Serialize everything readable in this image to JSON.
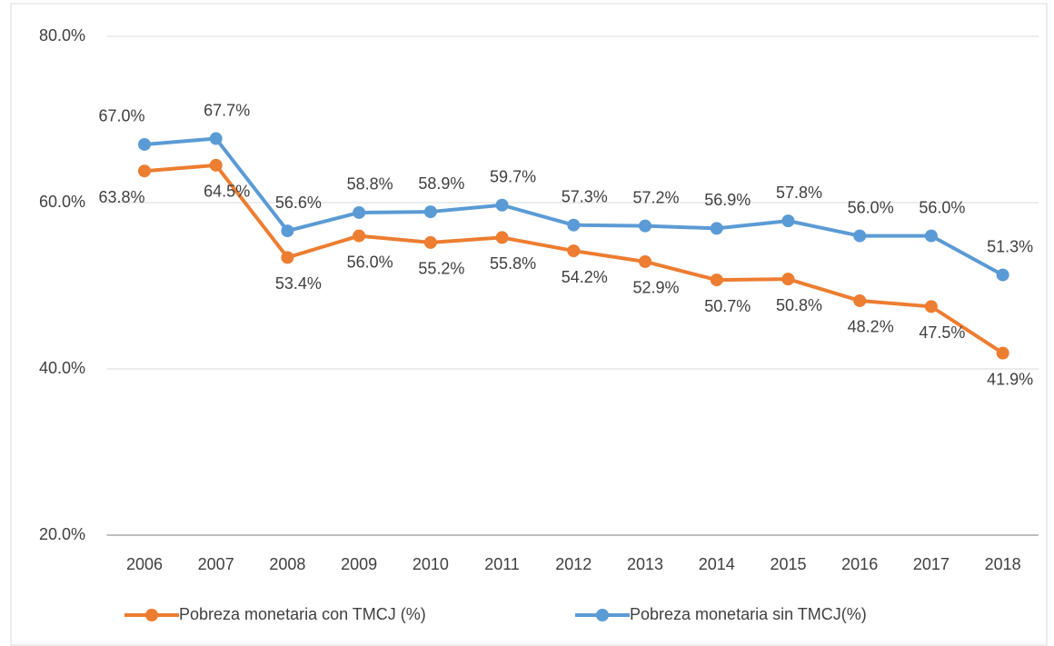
{
  "chart_data": {
    "type": "line",
    "categories": [
      "2006",
      "2007",
      "2008",
      "2009",
      "2010",
      "2011",
      "2012",
      "2013",
      "2014",
      "2015",
      "2016",
      "2017",
      "2018"
    ],
    "series": [
      {
        "name": "Pobreza monetaria con TMCJ (%)",
        "color": "#ed7d31",
        "values": [
          63.8,
          64.5,
          53.4,
          56.0,
          55.2,
          55.8,
          54.2,
          52.9,
          50.7,
          50.8,
          48.2,
          47.5,
          41.9
        ],
        "value_labels": [
          "63.8%",
          "64.5%",
          "53.4%",
          "56.0%",
          "55.2%",
          "55.8%",
          "54.2%",
          "52.9%",
          "50.7%",
          "50.8%",
          "48.2%",
          "47.5%",
          "41.9%"
        ]
      },
      {
        "name": "Pobreza monetaria sin TMCJ(%)",
        "color": "#5b9bd5",
        "values": [
          67.0,
          67.7,
          56.6,
          58.8,
          58.9,
          59.7,
          57.3,
          57.2,
          56.9,
          57.8,
          56.0,
          56.0,
          51.3
        ],
        "value_labels": [
          "67.0%",
          "67.7%",
          "56.6%",
          "58.8%",
          "58.9%",
          "59.7%",
          "57.3%",
          "57.2%",
          "56.9%",
          "57.8%",
          "56.0%",
          "56.0%",
          "51.3%"
        ]
      }
    ],
    "ylim": [
      20,
      80
    ],
    "yticks": [
      {
        "value": 20,
        "label": "20.0%"
      },
      {
        "value": 40,
        "label": "40.0%"
      },
      {
        "value": 60,
        "label": "60.0%"
      },
      {
        "value": 80,
        "label": "80.0%"
      }
    ],
    "grid": true,
    "legend": "bottom"
  }
}
